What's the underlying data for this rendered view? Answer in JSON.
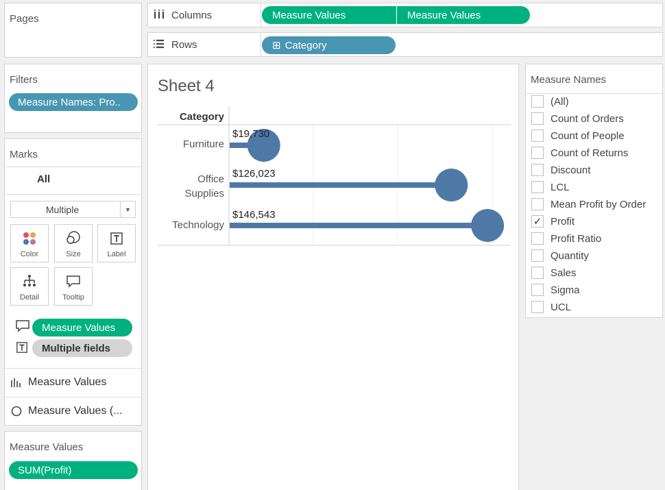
{
  "pages": {
    "title": "Pages"
  },
  "columns": {
    "label": "Columns",
    "pills": [
      "Measure Values",
      "Measure Values"
    ]
  },
  "rows": {
    "label": "Rows",
    "pill": "Category",
    "pill_prefix": "⊞"
  },
  "filters": {
    "title": "Filters",
    "pill": "Measure Names: Pro.."
  },
  "marks": {
    "title": "Marks",
    "tab": "All",
    "dropdown": "Multiple",
    "buttons": {
      "color": "Color",
      "size": "Size",
      "label": "Label",
      "detail": "Detail",
      "tooltip": "Tooltip"
    },
    "fields": {
      "tooltip_pill": "Measure Values",
      "label_pill": "Multiple fields"
    },
    "cards": {
      "bar": "Measure Values",
      "circle": "Measure Values (..."
    }
  },
  "measure_values": {
    "title": "Measure Values",
    "pill": "SUM(Profit)"
  },
  "sheet": {
    "title": "Sheet 4",
    "header": "Category",
    "categories": [
      {
        "lines": [
          "Furniture"
        ],
        "label": "$19,730"
      },
      {
        "lines": [
          "Office",
          "Supplies"
        ],
        "label": "$126,023"
      },
      {
        "lines": [
          "Technology"
        ],
        "label": "$146,543"
      }
    ]
  },
  "chart_data": {
    "type": "bar",
    "categories": [
      "Furniture",
      "Office Supplies",
      "Technology"
    ],
    "values": [
      19730,
      126023,
      146543
    ],
    "data_labels": [
      "$19,730",
      "$126,023",
      "$146,543"
    ],
    "ylabel": "Category",
    "xlim": [
      0,
      150000
    ],
    "grid": true,
    "mark": "lollipop",
    "color": "#4e79a7"
  },
  "measure_names": {
    "title": "Measure Names",
    "items": [
      {
        "label": "(All)",
        "checked": ""
      },
      {
        "label": "Count of Orders",
        "checked": ""
      },
      {
        "label": "Count of People",
        "checked": ""
      },
      {
        "label": "Count of Returns",
        "checked": ""
      },
      {
        "label": "Discount",
        "checked": ""
      },
      {
        "label": "LCL",
        "checked": ""
      },
      {
        "label": "Mean Profit by Order",
        "checked": ""
      },
      {
        "label": "Profit",
        "checked": "✓"
      },
      {
        "label": "Profit Ratio",
        "checked": ""
      },
      {
        "label": "Quantity",
        "checked": ""
      },
      {
        "label": "Sales",
        "checked": ""
      },
      {
        "label": "Sigma",
        "checked": ""
      },
      {
        "label": "UCL",
        "checked": ""
      }
    ]
  },
  "colors": {
    "green": "#00b180",
    "blue": "#4996b2",
    "mark": "#4e79a7"
  }
}
